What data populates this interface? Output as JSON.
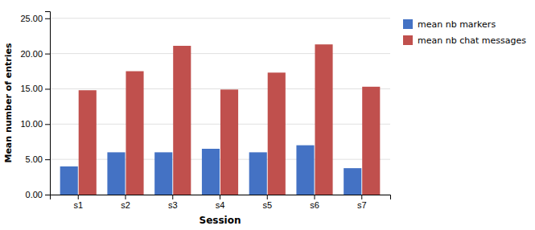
{
  "chart_data": {
    "type": "bar",
    "categories": [
      "s1",
      "s2",
      "s3",
      "s4",
      "s5",
      "s6",
      "s7"
    ],
    "series": [
      {
        "name": "mean nb markers",
        "color": "#4472C4",
        "values": [
          4.0,
          6.0,
          6.0,
          6.5,
          6.0,
          7.0,
          3.75
        ]
      },
      {
        "name": "mean nb chat messages",
        "color": "#C0504D",
        "values": [
          14.8,
          17.5,
          21.1,
          14.9,
          17.3,
          21.3,
          15.3
        ]
      }
    ],
    "xlabel": "Session",
    "ylabel": "Mean number of entries",
    "ylim": [
      0,
      26
    ],
    "yticks": [
      {
        "value": 0.0,
        "label": "0.00"
      },
      {
        "value": 5.0,
        "label": "5.00"
      },
      {
        "value": 10.0,
        "label": "10.00"
      },
      {
        "value": 15.0,
        "label": "15.00"
      },
      {
        "value": 20.0,
        "label": "20.00"
      },
      {
        "value": 25.0,
        "label": "25.00"
      }
    ],
    "grid": true,
    "legend": "right"
  }
}
